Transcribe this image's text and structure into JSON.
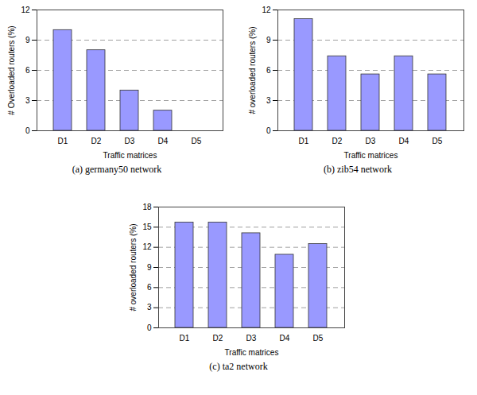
{
  "chart_data": [
    {
      "type": "bar",
      "title": "(a) germany50 network",
      "x_label": "Traffic matrices",
      "y_label": "# Overloaded routers (%)",
      "categories": [
        "D1",
        "D2",
        "D3",
        "D4",
        "D5"
      ],
      "values": [
        10,
        8,
        4,
        2,
        0
      ],
      "color": "#9999ff",
      "ylim": [
        0,
        12
      ],
      "yticks": [
        0,
        3,
        6,
        9,
        12
      ],
      "grid": true
    },
    {
      "type": "bar",
      "title": "(b) zib54 network",
      "x_label": "Traffic matrices",
      "y_label": "# overloaded routers (%)",
      "categories": [
        "D1",
        "D2",
        "D3",
        "D4",
        "D5"
      ],
      "values": [
        11.1,
        7.4,
        5.6,
        7.4,
        5.6
      ],
      "color": "#9999ff",
      "ylim": [
        0,
        12
      ],
      "yticks": [
        0,
        3,
        6,
        9,
        12
      ],
      "grid": true
    },
    {
      "type": "bar",
      "title": "(c) ta2 network",
      "x_label": "Traffic matrices",
      "y_label": "# overloaded routers (%)",
      "categories": [
        "D1",
        "D2",
        "D3",
        "D4",
        "D5"
      ],
      "values": [
        15.7,
        15.7,
        14.1,
        10.9,
        12.5
      ],
      "color": "#9999ff",
      "ylim": [
        0,
        18
      ],
      "yticks": [
        0,
        3,
        6,
        9,
        12,
        15,
        18
      ],
      "grid": true
    }
  ]
}
